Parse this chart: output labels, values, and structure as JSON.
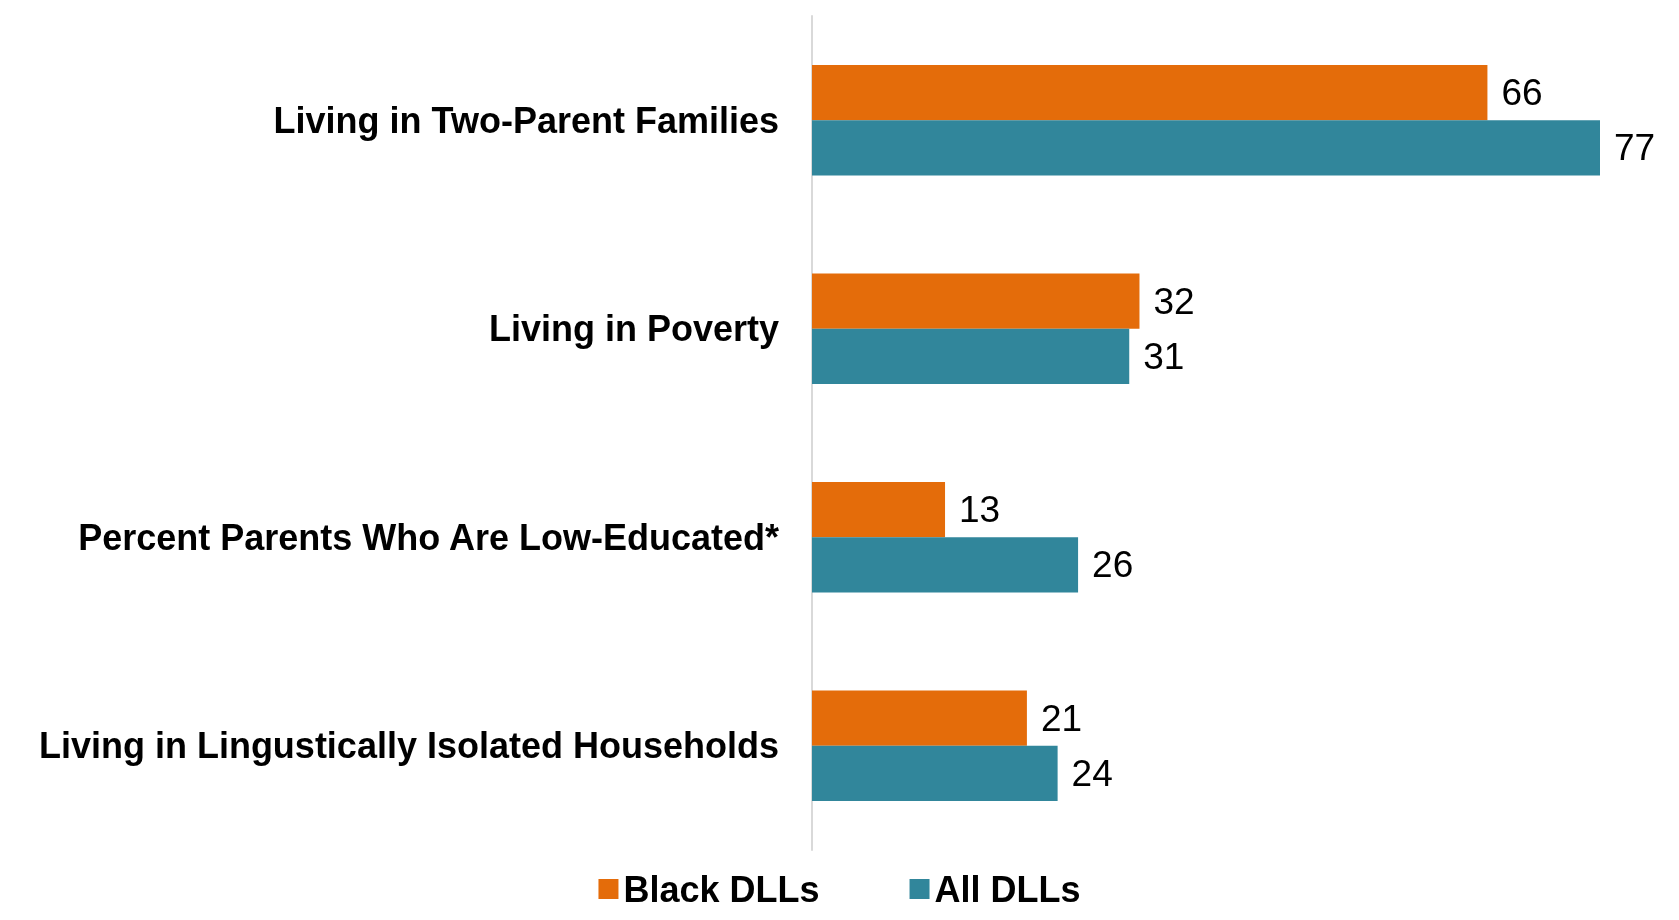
{
  "chart_data": {
    "type": "bar",
    "orientation": "horizontal",
    "categories": [
      "Living in Two-Parent Families",
      "Living in Poverty",
      "Percent Parents Who Are Low-Educated*",
      "Living in Lingustically Isolated Households"
    ],
    "series": [
      {
        "name": "Black DLLs",
        "color": "#e46c0a",
        "values": [
          66,
          32,
          13,
          21
        ]
      },
      {
        "name": "All DLLs",
        "color": "#31869b",
        "values": [
          77,
          31,
          26,
          24
        ]
      }
    ],
    "data_labels": true,
    "legend": "bottom",
    "tick_labels": "y"
  }
}
